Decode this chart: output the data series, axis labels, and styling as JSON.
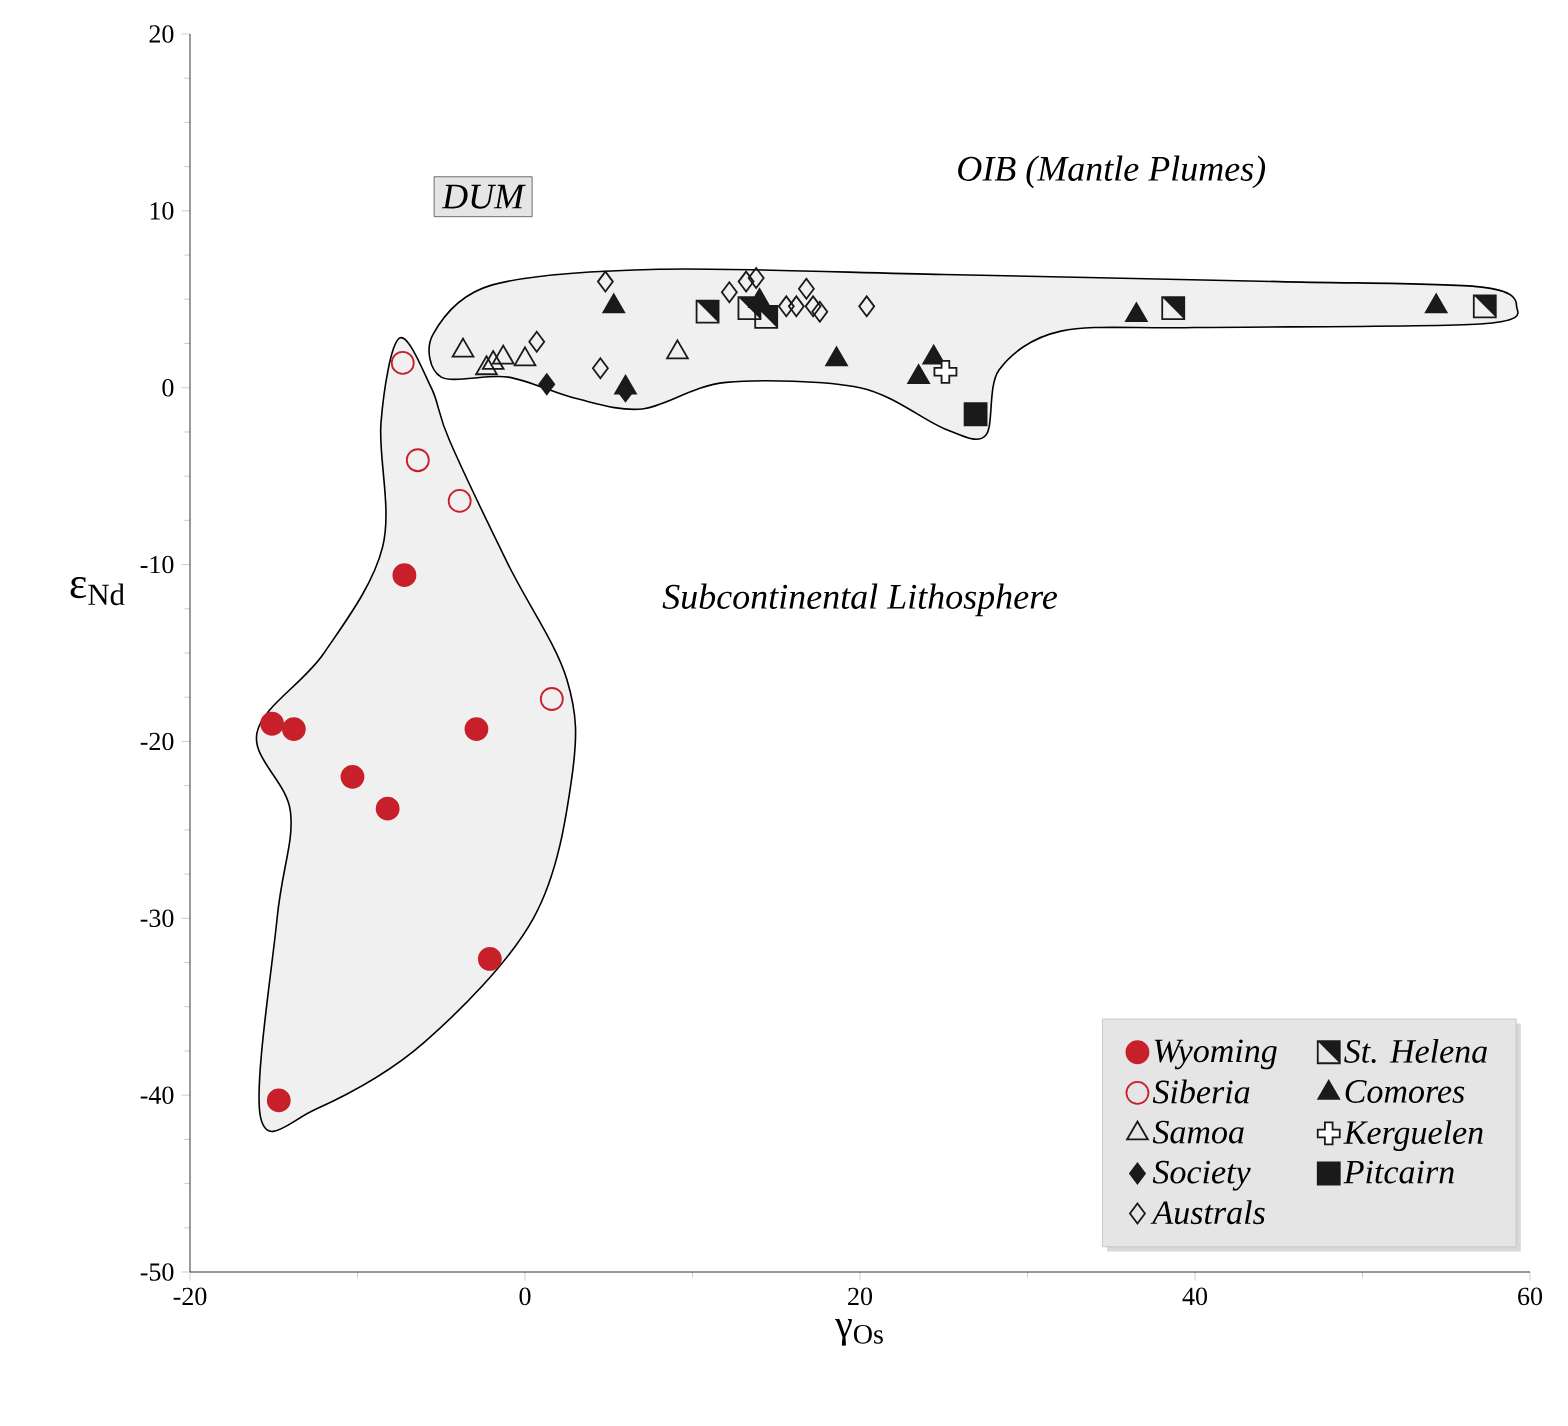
{
  "chart_data": {
    "type": "scatter",
    "xlabel": "γ$_{Os}$",
    "ylabel": "ε$_{Nd}$",
    "xlim": [
      -20,
      60
    ],
    "xticks": [
      -20,
      0,
      20,
      40,
      60
    ],
    "ylim": [
      -50,
      20
    ],
    "yticks": [
      -50,
      -40,
      -30,
      -20,
      -10,
      0,
      10,
      20
    ],
    "grid": false,
    "legend": "bottom right",
    "annotations": [
      "DUM",
      "OIB (Mantle Plumes)",
      "Subcontinental Lithosphere"
    ],
    "series": [
      {
        "name": "Wyoming",
        "color": "#c8202a",
        "marker": "circle",
        "x": [
          -7.2,
          -15.1,
          -13.8,
          -2.9,
          -10.3,
          -8.2,
          -2.1,
          -14.7
        ],
        "values": [
          -10.6,
          -19.0,
          -19.3,
          -19.3,
          -22.0,
          -23.8,
          -32.3,
          -40.3
        ]
      },
      {
        "name": "Siberia",
        "color": "#c8202a",
        "marker": "circle",
        "x": [
          -7.3,
          -6.4,
          -3.9,
          1.6
        ],
        "values": [
          1.4,
          -4.1,
          -6.4,
          -17.6
        ]
      },
      {
        "name": "Samoa",
        "color": "#1a1a1a",
        "marker": "triangle",
        "x": [
          -3.7,
          -2.3,
          -1.9,
          -1.3,
          0.0,
          9.1
        ],
        "values": [
          2.1,
          1.1,
          1.4,
          1.7,
          1.6,
          2.0
        ]
      },
      {
        "name": "Society",
        "color": "#1a1a1a",
        "marker": "diamond",
        "x": [
          1.3,
          6.0
        ],
        "values": [
          0.2,
          -0.2
        ]
      },
      {
        "name": "Australs",
        "color": "#1a1a1a",
        "marker": "diamond",
        "x": [
          4.8,
          13.2,
          13.8,
          12.2,
          16.8,
          16.2,
          17.6,
          20.4,
          4.5,
          0.7,
          15.6,
          17.2
        ],
        "values": [
          6.0,
          6.0,
          6.2,
          5.4,
          5.6,
          4.6,
          4.3,
          4.6,
          1.1,
          2.6,
          4.6,
          4.6
        ]
      },
      {
        "name": "St. Helena",
        "color": "#1a1a1a",
        "marker": "square",
        "x": [
          10.9,
          13.4,
          14.4,
          38.7,
          57.3
        ],
        "values": [
          4.3,
          4.5,
          4.0,
          4.5,
          4.6
        ]
      },
      {
        "name": "Comores",
        "color": "#1a1a1a",
        "marker": "triangle",
        "x": [
          5.3,
          6.0,
          14.0,
          18.6,
          23.5,
          24.4,
          36.5,
          54.4
        ],
        "values": [
          4.6,
          0.0,
          4.9,
          1.6,
          0.6,
          1.7,
          4.1,
          4.6
        ]
      },
      {
        "name": "Kerguelen",
        "color": "#1a1a1a",
        "marker": "cross",
        "x": [
          25.1
        ],
        "values": [
          0.9
        ]
      },
      {
        "name": "Pitcairn",
        "color": "#1a1a1a",
        "marker": "square",
        "x": [
          26.9
        ],
        "values": [
          -1.5
        ]
      }
    ]
  }
}
